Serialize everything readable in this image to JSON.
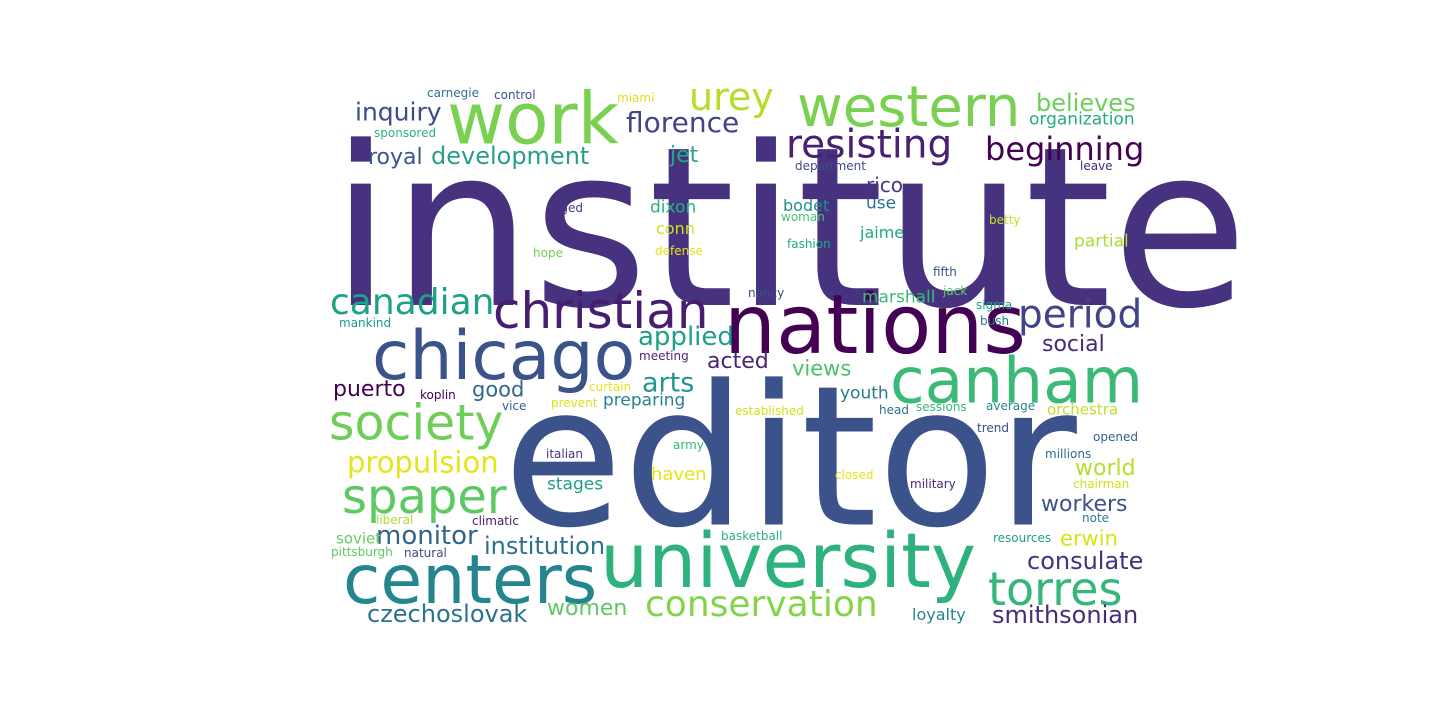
{
  "words": [
    {
      "text": "institute",
      "color": "#46327e"
    },
    {
      "text": "editor",
      "color": "#3b528b"
    },
    {
      "text": "university",
      "color": "#2db27d"
    },
    {
      "text": "nations",
      "color": "#440154"
    },
    {
      "text": "centers",
      "color": "#25858e"
    },
    {
      "text": "chicago",
      "color": "#3b528b"
    },
    {
      "text": "canham",
      "color": "#3aba76"
    },
    {
      "text": "western",
      "color": "#7ad151"
    },
    {
      "text": "work",
      "color": "#7ad151"
    },
    {
      "text": "christian",
      "color": "#471d6f"
    },
    {
      "text": "society",
      "color": "#6ece58"
    },
    {
      "text": "spaper",
      "color": "#5ec962"
    },
    {
      "text": "torres",
      "color": "#35b779"
    },
    {
      "text": "conservation",
      "color": "#84d44b"
    },
    {
      "text": "resisting",
      "color": "#482173"
    },
    {
      "text": "period",
      "color": "#414487"
    },
    {
      "text": "canadian",
      "color": "#1fa187"
    },
    {
      "text": "beginning",
      "color": "#440154"
    },
    {
      "text": "urey",
      "color": "#b5de2b"
    },
    {
      "text": "florence",
      "color": "#414487"
    },
    {
      "text": "propulsion",
      "color": "#e7e419"
    },
    {
      "text": "development",
      "color": "#2a9d8a"
    },
    {
      "text": "institution",
      "color": "#2c728e"
    },
    {
      "text": "monitor",
      "color": "#33638d"
    },
    {
      "text": "arts",
      "color": "#1f988b"
    },
    {
      "text": "inquiry",
      "color": "#3e4a89"
    },
    {
      "text": "applied",
      "color": "#1f9e89"
    },
    {
      "text": "smithsonian",
      "color": "#472c7a"
    },
    {
      "text": "consulate",
      "color": "#46327e"
    },
    {
      "text": "women",
      "color": "#5ec962"
    },
    {
      "text": "czechoslovak",
      "color": "#2c728e"
    },
    {
      "text": "believes",
      "color": "#6ece58"
    },
    {
      "text": "workers",
      "color": "#3b528b"
    },
    {
      "text": "world",
      "color": "#b5de2b"
    },
    {
      "text": "acted",
      "color": "#482475"
    },
    {
      "text": "puerto",
      "color": "#440154"
    },
    {
      "text": "royal",
      "color": "#39568c"
    },
    {
      "text": "jet",
      "color": "#23a983"
    },
    {
      "text": "social",
      "color": "#482878"
    },
    {
      "text": "organization",
      "color": "#25ab82"
    },
    {
      "text": "good",
      "color": "#31688e"
    },
    {
      "text": "views",
      "color": "#4ac16d"
    },
    {
      "text": "erwin",
      "color": "#d8e219"
    },
    {
      "text": "preparing",
      "color": "#26828e"
    },
    {
      "text": "rico",
      "color": "#453781"
    },
    {
      "text": "stages",
      "color": "#1f9e89"
    },
    {
      "text": "haven",
      "color": "#e5e419"
    },
    {
      "text": "dixon",
      "color": "#2ab07f"
    },
    {
      "text": "youth",
      "color": "#2a788e"
    },
    {
      "text": "partial",
      "color": "#addc30"
    },
    {
      "text": "marshall",
      "color": "#3aba76"
    },
    {
      "text": "orchestra",
      "color": "#bddf26"
    },
    {
      "text": "loyalty",
      "color": "#25858e"
    },
    {
      "text": "bodet",
      "color": "#21918c"
    },
    {
      "text": "use",
      "color": "#2c728e"
    },
    {
      "text": "jaime",
      "color": "#22a884"
    },
    {
      "text": "conn",
      "color": "#d0e11c"
    },
    {
      "text": "sponsored",
      "color": "#2db27d"
    },
    {
      "text": "carnegie",
      "color": "#2c728e"
    },
    {
      "text": "control",
      "color": "#3b528b"
    },
    {
      "text": "miami",
      "color": "#d8e219"
    },
    {
      "text": "department",
      "color": "#3e4989"
    },
    {
      "text": "leave",
      "color": "#482878"
    },
    {
      "text": "urged",
      "color": "#453781"
    },
    {
      "text": "woman",
      "color": "#4ac16d"
    },
    {
      "text": "betty",
      "color": "#c8e020"
    },
    {
      "text": "defense",
      "color": "#e5e419"
    },
    {
      "text": "hope",
      "color": "#75d054"
    },
    {
      "text": "fashion",
      "color": "#22a884"
    },
    {
      "text": "fifth",
      "color": "#3b528b"
    },
    {
      "text": "nancy",
      "color": "#3e4a89"
    },
    {
      "text": "jack",
      "color": "#5ec962"
    },
    {
      "text": "sigma",
      "color": "#1fa187"
    },
    {
      "text": "bush",
      "color": "#2a788e"
    },
    {
      "text": "mankind",
      "color": "#1f968b"
    },
    {
      "text": "meeting",
      "color": "#482878"
    },
    {
      "text": "curtain",
      "color": "#e7e419"
    },
    {
      "text": "koplin",
      "color": "#440154"
    },
    {
      "text": "vice",
      "color": "#355f8d"
    },
    {
      "text": "prevent",
      "color": "#d8e219"
    },
    {
      "text": "established",
      "color": "#d0e11c"
    },
    {
      "text": "head",
      "color": "#2d708e"
    },
    {
      "text": "sessions",
      "color": "#35b779"
    },
    {
      "text": "average",
      "color": "#26828e"
    },
    {
      "text": "army",
      "color": "#35b779"
    },
    {
      "text": "italian",
      "color": "#46337e"
    },
    {
      "text": "trend",
      "color": "#3e4989"
    },
    {
      "text": "opened",
      "color": "#355f8d"
    },
    {
      "text": "closed",
      "color": "#e5e419"
    },
    {
      "text": "military",
      "color": "#482878"
    },
    {
      "text": "millions",
      "color": "#2e6e8e"
    },
    {
      "text": "chairman",
      "color": "#d0e11c"
    },
    {
      "text": "note",
      "color": "#287c8e"
    },
    {
      "text": "liberal",
      "color": "#addc30"
    },
    {
      "text": "climatic",
      "color": "#481b6d"
    },
    {
      "text": "soviet",
      "color": "#65cb5e"
    },
    {
      "text": "pittsburgh",
      "color": "#5ec962"
    },
    {
      "text": "natural",
      "color": "#3e4989"
    },
    {
      "text": "basketball",
      "color": "#2db27d"
    },
    {
      "text": "resources",
      "color": "#1f9e89"
    }
  ]
}
